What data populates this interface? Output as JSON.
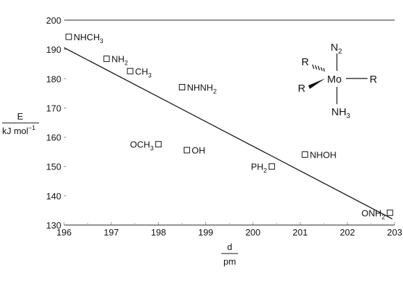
{
  "chart_data": {
    "type": "scatter",
    "title": "",
    "xlabel": {
      "numerator": "d",
      "denominator": "pm"
    },
    "ylabel": {
      "numerator": "E",
      "denominator_main": "kJ mol",
      "denominator_sup": "−1"
    },
    "xlim": [
      196,
      203
    ],
    "ylim": [
      130,
      200
    ],
    "xticks": [
      196,
      197,
      198,
      199,
      200,
      201,
      202,
      203
    ],
    "yticks": [
      130,
      140,
      150,
      160,
      170,
      180,
      190,
      200
    ],
    "grid": false,
    "points": [
      {
        "x": 196.1,
        "y": 194.3,
        "label_main": "NHCH",
        "label_sub": "3",
        "label_side": "right"
      },
      {
        "x": 196.9,
        "y": 186.8,
        "label_main": "NH",
        "label_sub": "2",
        "label_side": "right"
      },
      {
        "x": 197.4,
        "y": 182.6,
        "label_main": "CH",
        "label_sub": "3",
        "label_side": "right"
      },
      {
        "x": 198.5,
        "y": 177.1,
        "label_main": "NHNH",
        "label_sub": "2",
        "label_side": "right"
      },
      {
        "x": 198.0,
        "y": 157.6,
        "label_main": "OCH",
        "label_sub": "3",
        "label_side": "left"
      },
      {
        "x": 198.6,
        "y": 155.6,
        "label_main": "OH",
        "label_sub": "",
        "label_side": "right"
      },
      {
        "x": 200.4,
        "y": 150.0,
        "label_main": "PH",
        "label_sub": "2",
        "label_side": "left"
      },
      {
        "x": 201.1,
        "y": 154.1,
        "label_main": "NHOH",
        "label_sub": "",
        "label_side": "right"
      },
      {
        "x": 202.9,
        "y": 134.2,
        "label_main": "ONH",
        "label_sub": "2",
        "label_side": "left"
      }
    ],
    "fit_line": {
      "x": [
        196,
        202.95
      ],
      "y": [
        190.6,
        132.1
      ]
    }
  },
  "structure": {
    "center": "Mo",
    "top": {
      "main": "N",
      "sub": "2"
    },
    "bottom": {
      "main": "NH",
      "sub": "3"
    },
    "right": "R",
    "upper_left": "R",
    "lower_left": "R"
  }
}
